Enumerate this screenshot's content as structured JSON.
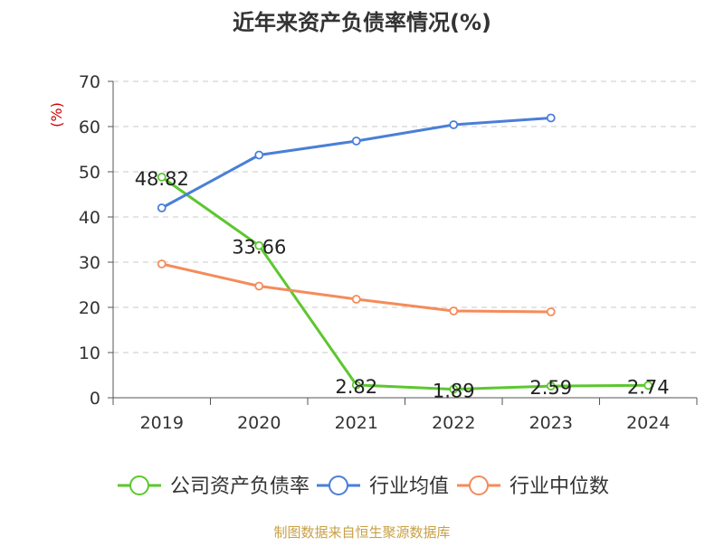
{
  "chart_data": {
    "type": "line",
    "title": "近年来资产负债率情况(%)",
    "ylabel": "(%)",
    "xlabel": "",
    "categories": [
      "2019",
      "2020",
      "2021",
      "2022",
      "2023",
      "2024"
    ],
    "ylim": [
      0,
      70
    ],
    "yticks": [
      0,
      10,
      20,
      30,
      40,
      50,
      60,
      70
    ],
    "grid": true,
    "legend_position": "bottom",
    "series": [
      {
        "name": "公司资产负债率",
        "color": "#5cc72f",
        "values": [
          48.82,
          33.66,
          2.82,
          1.89,
          2.59,
          2.74
        ],
        "labels": [
          "48.82",
          "33.66",
          "2.82",
          "1.89",
          "2.59",
          "2.74"
        ]
      },
      {
        "name": "行业均值",
        "color": "#4a7fd8",
        "values": [
          42.0,
          53.7,
          56.8,
          60.4,
          61.9,
          null
        ]
      },
      {
        "name": "行业中位数",
        "color": "#f58b5a",
        "values": [
          29.6,
          24.7,
          21.8,
          19.2,
          19.0,
          null
        ]
      }
    ]
  },
  "footer": {
    "source": "制图数据来自恒生聚源数据库",
    "source_color": "#c8a046"
  }
}
